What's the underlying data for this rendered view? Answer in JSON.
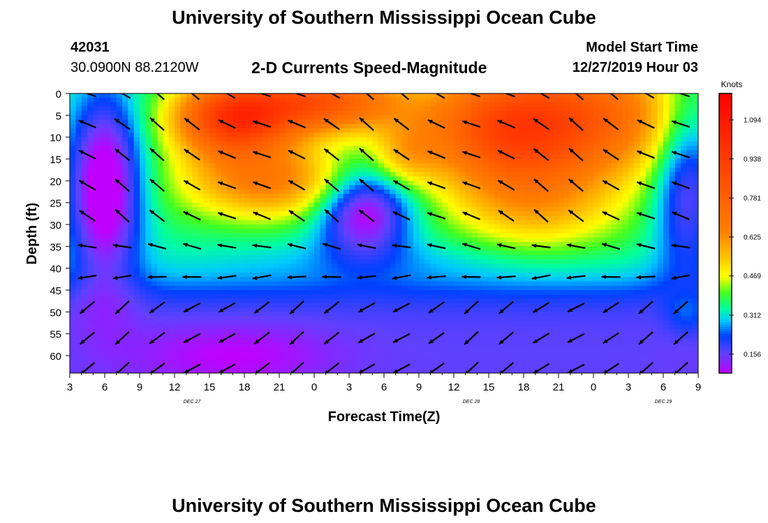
{
  "header": {
    "title": "University of Southern Mississippi Ocean Cube",
    "station_id": "42031",
    "station_coords": "30.0900N 88.2120W",
    "chart_title": "2-D Currents Speed-Magnitude",
    "model_start_label": "Model Start Time",
    "model_start_value": "12/27/2019 Hour 03"
  },
  "footer": {
    "title": "University of Southern Mississippi Ocean Cube"
  },
  "chart_data": {
    "type": "heatmap",
    "title": "2-D Currents Speed-Magnitude",
    "xlabel": "Forecast Time(Z)",
    "ylabel": "Depth (ft)",
    "x_tick_labels": [
      "3",
      "6",
      "9",
      "12",
      "15",
      "18",
      "21",
      "0",
      "3",
      "6",
      "9",
      "12",
      "15",
      "18",
      "21",
      "0",
      "3",
      "6",
      "9"
    ],
    "x_day_labels": [
      {
        "text": "DEC 27",
        "hours": 10.5
      },
      {
        "text": "DEC 28",
        "hours": 34.5
      },
      {
        "text": "DEC 29",
        "hours": 51
      }
    ],
    "x_range_hours": [
      0,
      54
    ],
    "y_ticks": [
      0,
      5,
      10,
      15,
      20,
      25,
      30,
      35,
      40,
      45,
      50,
      55,
      60
    ],
    "y_range": [
      0,
      64
    ],
    "colorbar": {
      "label": "Knots",
      "ticks": [
        0.156,
        0.312,
        0.469,
        0.625,
        0.781,
        0.938,
        1.094
      ],
      "range": [
        0.08,
        1.2
      ],
      "stops": [
        {
          "v": 0.08,
          "c": "#c000ff"
        },
        {
          "v": 0.16,
          "c": "#6040ff"
        },
        {
          "v": 0.23,
          "c": "#0040ff"
        },
        {
          "v": 0.29,
          "c": "#00c8ff"
        },
        {
          "v": 0.34,
          "c": "#00ffa0"
        },
        {
          "v": 0.4,
          "c": "#40ff20"
        },
        {
          "v": 0.47,
          "c": "#ffff00"
        },
        {
          "v": 0.55,
          "c": "#ffc000"
        },
        {
          "v": 0.65,
          "c": "#ff8000"
        },
        {
          "v": 0.85,
          "c": "#ff5000"
        },
        {
          "v": 1.2,
          "c": "#ff0000"
        }
      ]
    },
    "grid": false
  }
}
